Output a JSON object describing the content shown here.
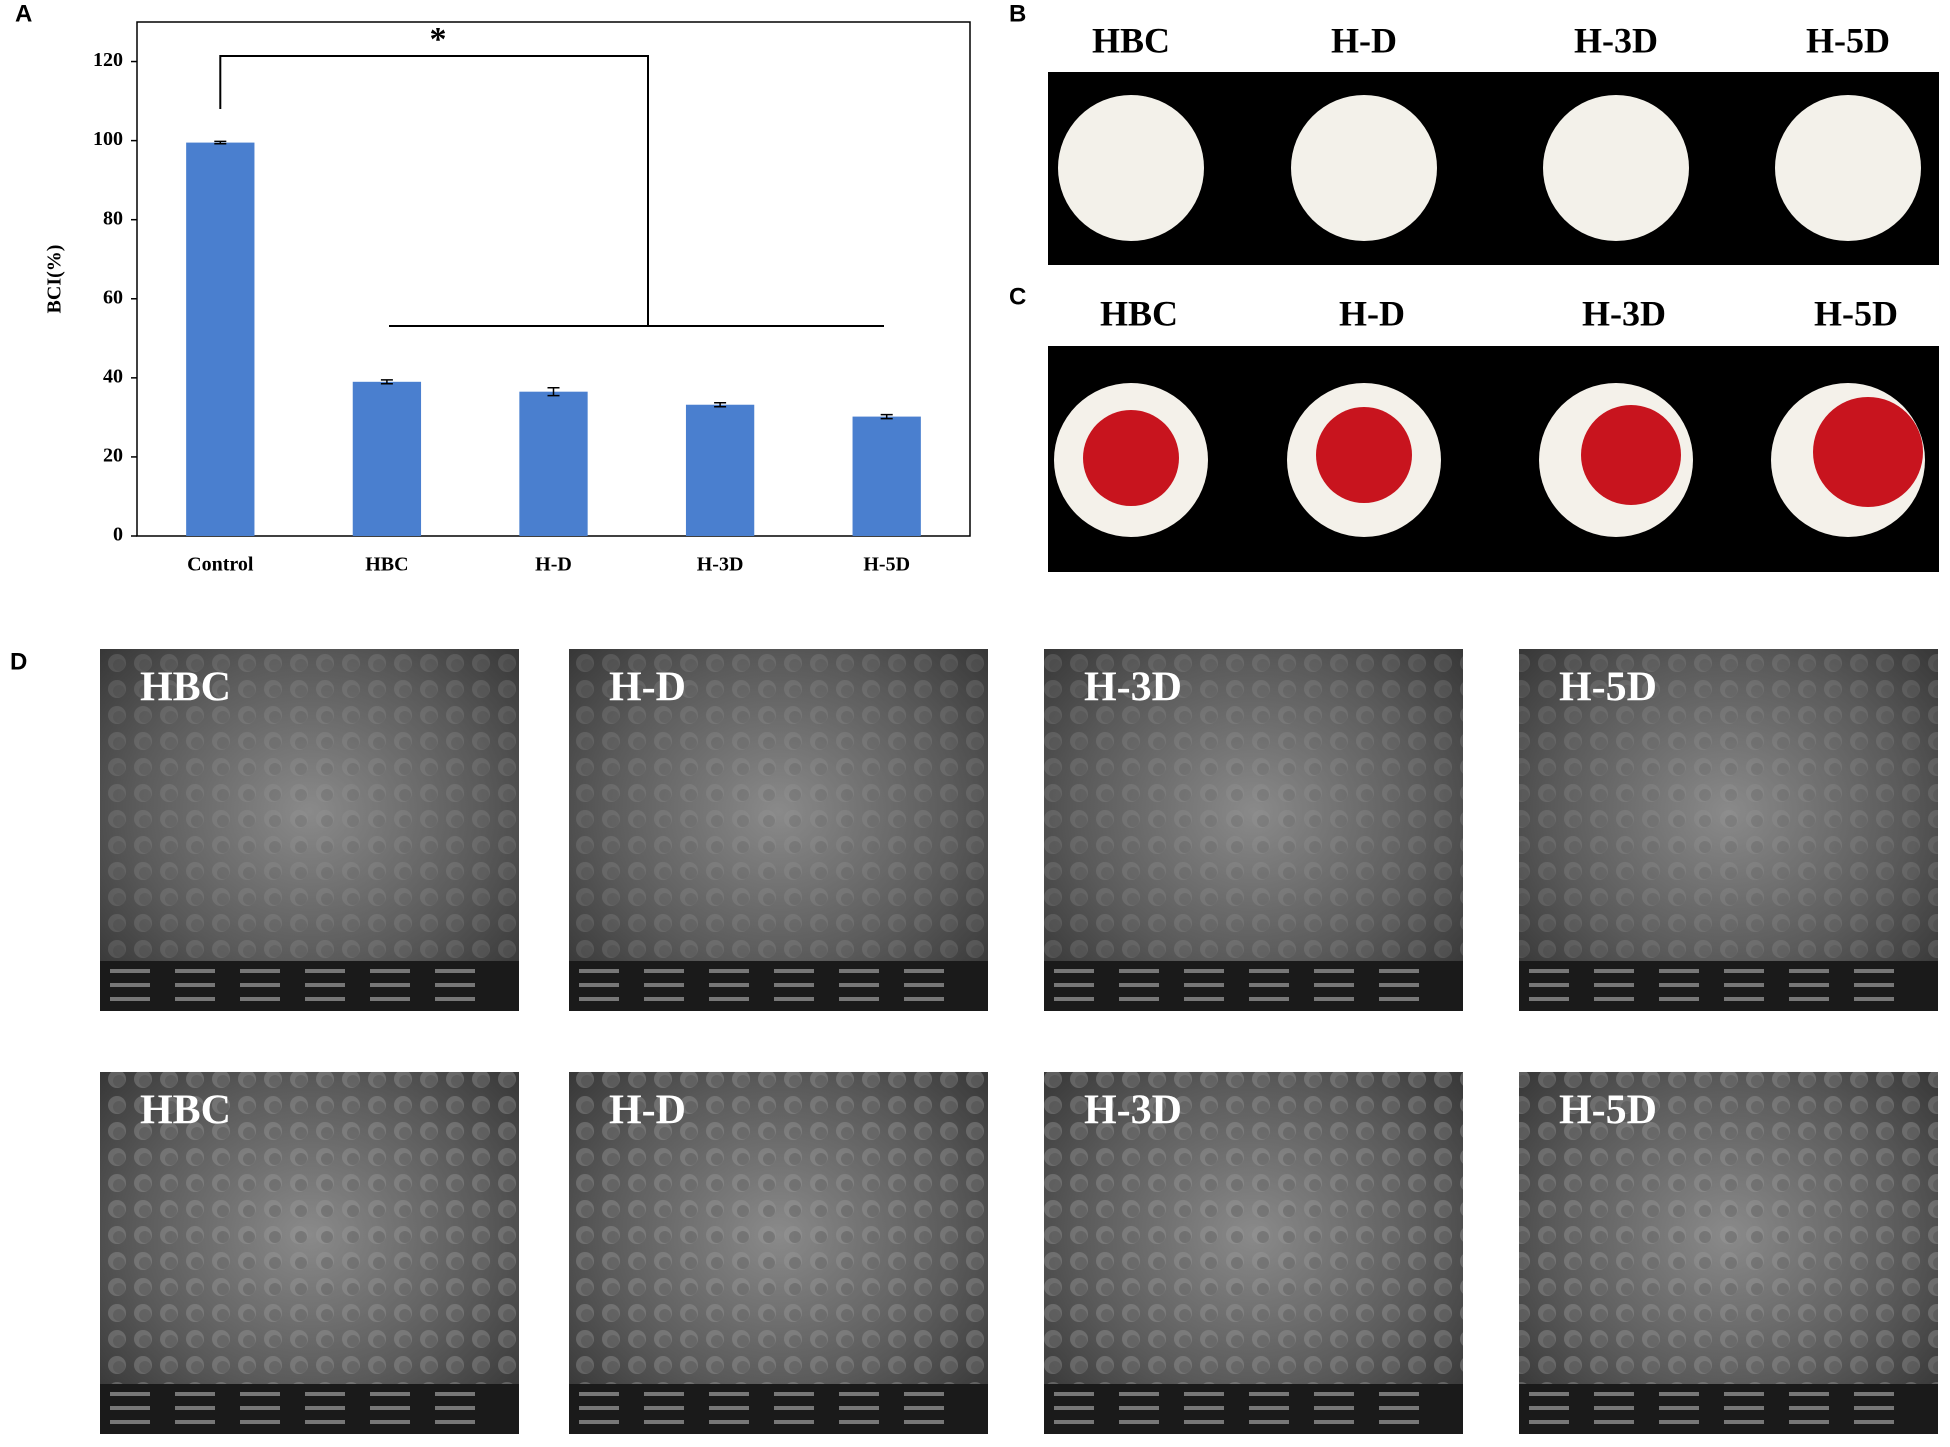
{
  "chart_data": {
    "type": "bar",
    "ylabel": "BCI(%)",
    "categories": [
      "Control",
      "HBC",
      "H-D",
      "H-3D",
      "H-5D"
    ],
    "values": [
      99.5,
      39,
      36.5,
      33.2,
      30.2
    ],
    "errors": [
      0.3,
      0.5,
      1,
      0.5,
      0.5
    ],
    "color": "#4a7fcf",
    "ylim": [
      0,
      130
    ],
    "yticks": [
      0,
      20,
      40,
      60,
      80,
      100,
      120
    ],
    "annotation": "*"
  },
  "panel_labels": [
    "A",
    "B",
    "C",
    "D"
  ],
  "photos_b": {
    "labels": [
      "HBC",
      "H-D",
      "H-3D",
      "H-5D"
    ]
  },
  "photos_c": {
    "labels": [
      "HBC",
      "H-D",
      "H-3D",
      "H-5D"
    ]
  },
  "sem": {
    "rows": [
      [
        "HBC",
        "H-D",
        "H-3D",
        "H-5D"
      ],
      [
        "HBC",
        "H-D",
        "H-3D",
        "H-5D"
      ]
    ]
  }
}
